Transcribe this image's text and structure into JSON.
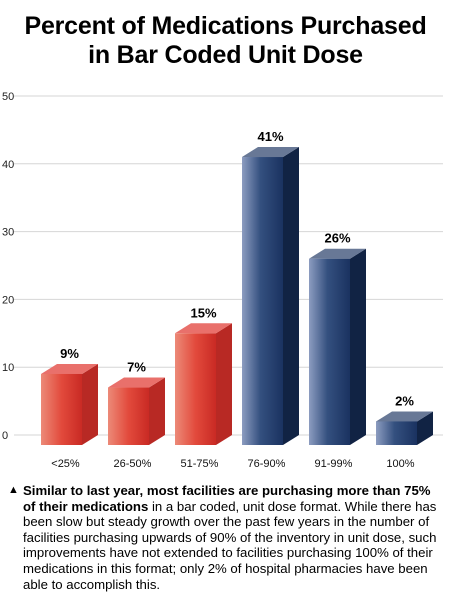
{
  "chart_data": {
    "type": "bar",
    "title": [
      "Percent of Medications Purchased",
      "in Bar Coded Unit Dose"
    ],
    "categories": [
      "<25%",
      "26-50%",
      "51-75%",
      "76-90%",
      "91-99%",
      "100%"
    ],
    "values": [
      9,
      7,
      15,
      41,
      26,
      2
    ],
    "value_labels": [
      "9%",
      "7%",
      "15%",
      "41%",
      "26%",
      "2%"
    ],
    "yticks": [
      0,
      10,
      20,
      30,
      40,
      50
    ],
    "ylim": [
      0,
      50
    ],
    "grid": true,
    "colors": {
      "low_group": "#e0322c",
      "high_group": "#17305e"
    }
  },
  "caption": {
    "bullet": "▲",
    "bold": "Similar to last year, most facilities are purchasing more than 75% of their medications",
    "rest": " in a bar coded, unit dose format. While there has been slow but steady growth over the past few years in the number of facilities purchasing upwards of 90% of the inventory in unit dose, such improvements have not extended to facilities purchasing 100% of their medications in this format; only 2% of hospital pharmacies have been able to accomplish this."
  }
}
